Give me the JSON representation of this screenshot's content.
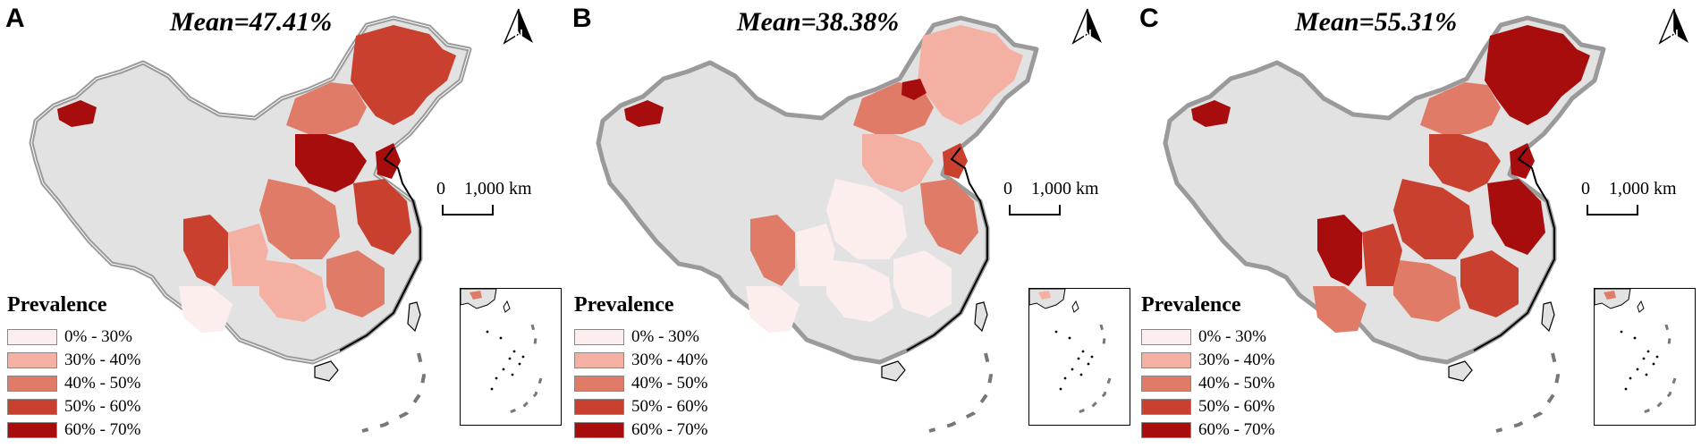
{
  "panels": [
    {
      "letter": "A",
      "mean_label": "Mean=47.41%"
    },
    {
      "letter": "B",
      "mean_label": "Mean=38.38%"
    },
    {
      "letter": "C",
      "mean_label": "Mean=55.31%"
    }
  ],
  "legend": {
    "title": "Prevalence",
    "classes": [
      {
        "label": "0% - 30%",
        "color": "#fdeeee"
      },
      {
        "label": "30% - 40%",
        "color": "#f4b1a3"
      },
      {
        "label": "40% - 50%",
        "color": "#e07b68"
      },
      {
        "label": "50% - 60%",
        "color": "#c9402f"
      },
      {
        "label": "60% - 70%",
        "color": "#a80d0d"
      }
    ]
  },
  "scale_bar": {
    "label_zero": "0",
    "label_distance": "1,000 km"
  },
  "north_arrow": {
    "letter": "N",
    "icon": "north-arrow-icon"
  },
  "no_data_color": "#e2e2e2",
  "border_color": "#9a9a9a"
}
